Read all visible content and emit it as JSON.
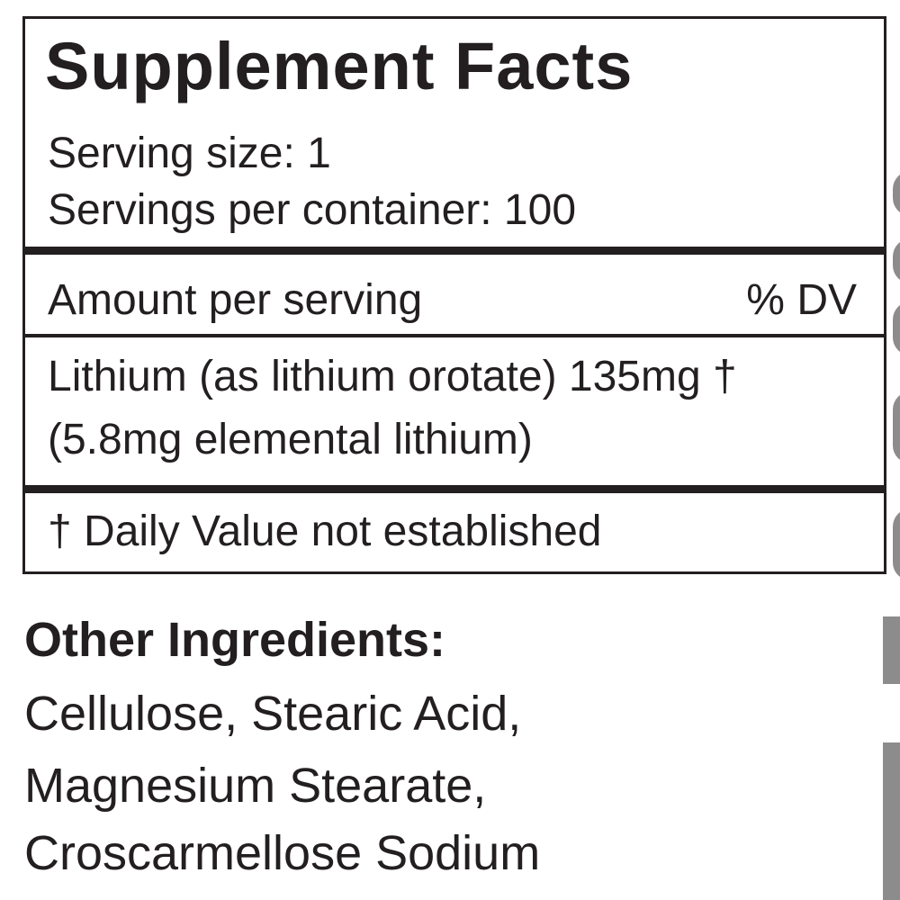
{
  "title": "Supplement Facts",
  "serving_size": "Serving size: 1",
  "servings_per_container": "Servings per container: 100",
  "amount_header": "Amount per serving",
  "dv_header": "% DV",
  "ingredient_line1": "Lithium (as lithium orotate) 135mg †",
  "ingredient_line2": "(5.8mg elemental lithium)",
  "footnote": "† Daily Value not established",
  "other_ingredients": {
    "heading": "Other Ingredients:",
    "lines": [
      "Cellulose, Stearic Acid,",
      "Magnesium Stearate,",
      "Croscarmellose Sodium"
    ]
  }
}
